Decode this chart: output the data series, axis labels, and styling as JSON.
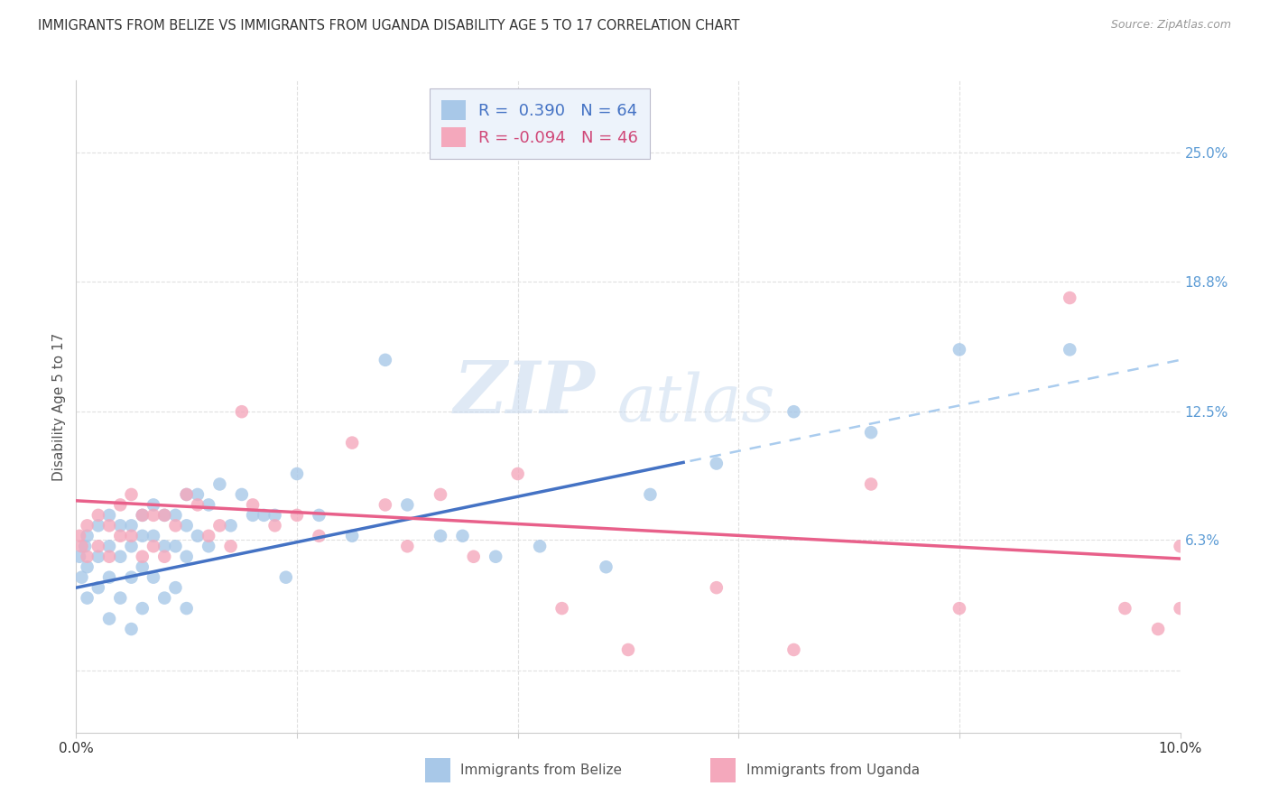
{
  "title": "IMMIGRANTS FROM BELIZE VS IMMIGRANTS FROM UGANDA DISABILITY AGE 5 TO 17 CORRELATION CHART",
  "source": "Source: ZipAtlas.com",
  "ylabel": "Disability Age 5 to 17",
  "xlim": [
    0.0,
    0.1
  ],
  "ylim": [
    -0.03,
    0.285
  ],
  "belize_color": "#A8C8E8",
  "uganda_color": "#F4A8BC",
  "belize_line_color": "#4472C4",
  "uganda_line_color": "#E8608A",
  "dashed_line_color": "#AACCEE",
  "legend_belize_r": "0.390",
  "legend_belize_n": "64",
  "legend_uganda_r": "-0.094",
  "legend_uganda_n": "46",
  "grid_color": "#E0E0E0",
  "belize_intercept": 0.04,
  "belize_slope": 1.1,
  "uganda_intercept": 0.082,
  "uganda_slope": -0.28,
  "belize_scatter_x": [
    0.0003,
    0.0005,
    0.0008,
    0.001,
    0.001,
    0.001,
    0.002,
    0.002,
    0.002,
    0.003,
    0.003,
    0.003,
    0.003,
    0.004,
    0.004,
    0.004,
    0.005,
    0.005,
    0.005,
    0.005,
    0.006,
    0.006,
    0.006,
    0.006,
    0.007,
    0.007,
    0.007,
    0.008,
    0.008,
    0.008,
    0.009,
    0.009,
    0.009,
    0.01,
    0.01,
    0.01,
    0.01,
    0.011,
    0.011,
    0.012,
    0.012,
    0.013,
    0.014,
    0.015,
    0.016,
    0.017,
    0.018,
    0.019,
    0.02,
    0.022,
    0.025,
    0.028,
    0.03,
    0.033,
    0.035,
    0.038,
    0.042,
    0.048,
    0.052,
    0.058,
    0.065,
    0.072,
    0.08,
    0.09
  ],
  "belize_scatter_y": [
    0.055,
    0.045,
    0.06,
    0.065,
    0.05,
    0.035,
    0.07,
    0.055,
    0.04,
    0.075,
    0.06,
    0.045,
    0.025,
    0.07,
    0.055,
    0.035,
    0.07,
    0.06,
    0.045,
    0.02,
    0.075,
    0.065,
    0.05,
    0.03,
    0.08,
    0.065,
    0.045,
    0.075,
    0.06,
    0.035,
    0.075,
    0.06,
    0.04,
    0.085,
    0.07,
    0.055,
    0.03,
    0.085,
    0.065,
    0.08,
    0.06,
    0.09,
    0.07,
    0.085,
    0.075,
    0.075,
    0.075,
    0.045,
    0.095,
    0.075,
    0.065,
    0.15,
    0.08,
    0.065,
    0.065,
    0.055,
    0.06,
    0.05,
    0.085,
    0.1,
    0.125,
    0.115,
    0.155,
    0.155
  ],
  "uganda_scatter_x": [
    0.0003,
    0.0005,
    0.001,
    0.001,
    0.002,
    0.002,
    0.003,
    0.003,
    0.004,
    0.004,
    0.005,
    0.005,
    0.006,
    0.006,
    0.007,
    0.007,
    0.008,
    0.008,
    0.009,
    0.01,
    0.011,
    0.012,
    0.013,
    0.014,
    0.015,
    0.016,
    0.018,
    0.02,
    0.022,
    0.025,
    0.028,
    0.03,
    0.033,
    0.036,
    0.04,
    0.044,
    0.05,
    0.058,
    0.065,
    0.072,
    0.08,
    0.09,
    0.095,
    0.098,
    0.1,
    0.1
  ],
  "uganda_scatter_y": [
    0.065,
    0.06,
    0.07,
    0.055,
    0.075,
    0.06,
    0.07,
    0.055,
    0.08,
    0.065,
    0.085,
    0.065,
    0.075,
    0.055,
    0.075,
    0.06,
    0.075,
    0.055,
    0.07,
    0.085,
    0.08,
    0.065,
    0.07,
    0.06,
    0.125,
    0.08,
    0.07,
    0.075,
    0.065,
    0.11,
    0.08,
    0.06,
    0.085,
    0.055,
    0.095,
    0.03,
    0.01,
    0.04,
    0.01,
    0.09,
    0.03,
    0.18,
    0.03,
    0.02,
    0.06,
    0.03
  ]
}
